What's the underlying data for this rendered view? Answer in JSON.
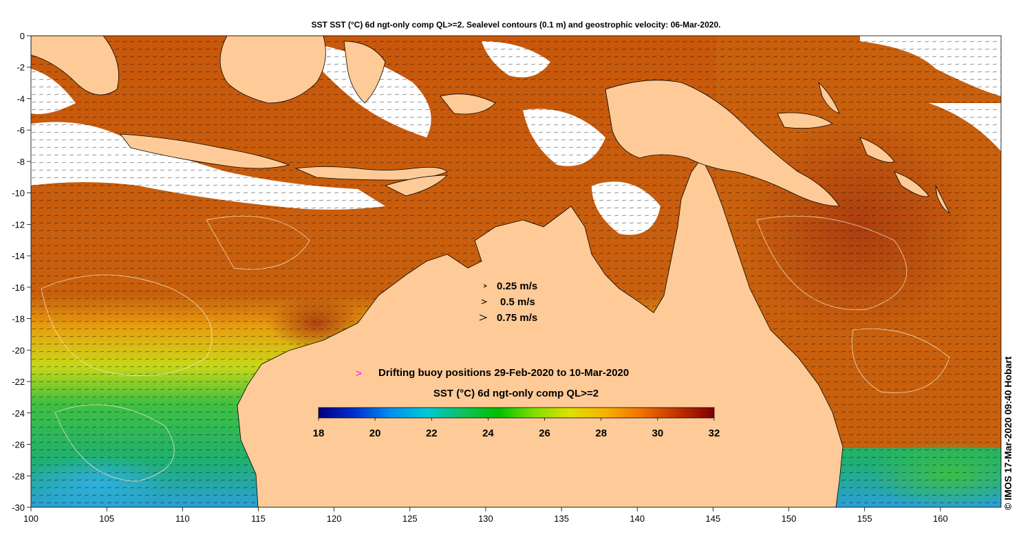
{
  "title": "SST SST (°C) 6d ngt-only comp QL>=2. Sealevel contours (0.1 m) and geostrophic velocity: 06-Mar-2020.",
  "map": {
    "lon_range": [
      100,
      164
    ],
    "lat_range": [
      -30,
      0
    ],
    "x_ticks": [
      100,
      105,
      110,
      115,
      120,
      125,
      130,
      135,
      140,
      145,
      150,
      155,
      160
    ],
    "y_ticks": [
      0,
      -2,
      -4,
      -6,
      -8,
      -10,
      -12,
      -14,
      -16,
      -18,
      -20,
      -22,
      -24,
      -26,
      -28,
      -30
    ],
    "colors": {
      "land": "#fecb98",
      "sst_warm": "#d4700c",
      "sst_hot": "#b3440e",
      "sst_cool": "#3bbf3b",
      "sst_cold": "#29a8d6",
      "cloud": "#ffffff",
      "buoy_marker": "#ff00ff"
    }
  },
  "velocity_legend": {
    "items": [
      "0.25 m/s",
      "0.5 m/s",
      "0.75 m/s"
    ]
  },
  "buoy_legend": {
    "marker": ">",
    "label": "Drifting buoy positions 29-Feb-2020 to 10-Mar-2020"
  },
  "colorbar": {
    "title": "SST (°C) 6d ngt-only comp QL>=2",
    "min": 18,
    "max": 32,
    "ticks": [
      18,
      20,
      22,
      24,
      26,
      28,
      30,
      32
    ],
    "stops": [
      "#00007f",
      "#0030d0",
      "#0090f0",
      "#00c8d8",
      "#10c060",
      "#00c000",
      "#80e000",
      "#e0e000",
      "#f8b000",
      "#f07000",
      "#c03000",
      "#800000"
    ]
  },
  "credit": "© IMOS 17-Mar-2020 09:40 Hobart"
}
